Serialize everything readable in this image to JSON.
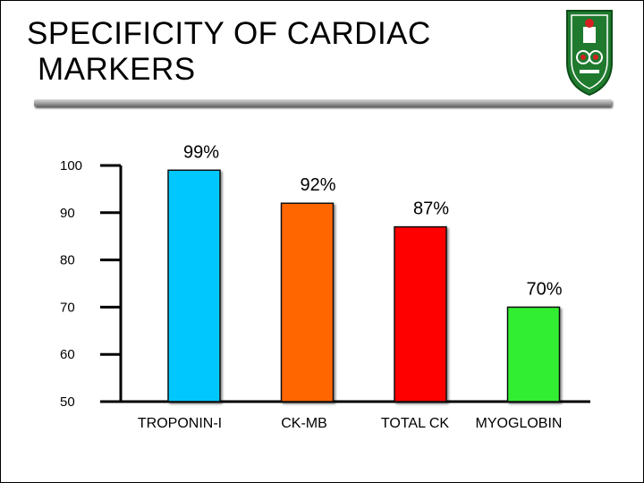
{
  "slide": {
    "title_line1": "SPECIFICITY OF CARDIAC",
    "title_line2": "MARKERS"
  },
  "logo": {
    "icon": "university-crest-icon",
    "color": "#1f7a2e"
  },
  "chart_data": {
    "type": "bar",
    "categories": [
      "TROPONIN-I",
      "CK-MB",
      "TOTAL CK",
      "MYOGLOBIN"
    ],
    "values": [
      99,
      92,
      87,
      70
    ],
    "data_labels": [
      "99%",
      "92%",
      "87%",
      "70%"
    ],
    "colors": [
      "#00c8ff",
      "#ff6600",
      "#ff0000",
      "#33ee33"
    ],
    "ylim": [
      50,
      100
    ],
    "yticks": [
      100,
      90,
      80,
      70,
      60,
      50
    ],
    "grid": false,
    "legend": "none"
  }
}
